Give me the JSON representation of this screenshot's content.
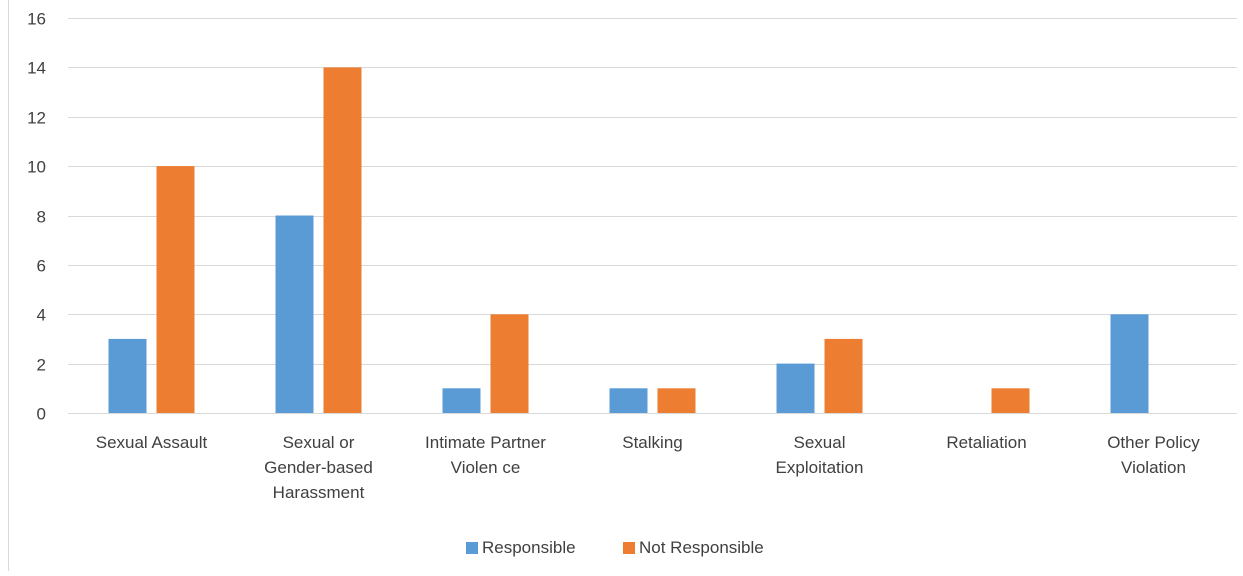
{
  "chart_data": {
    "type": "bar",
    "title": "",
    "xlabel": "",
    "ylabel": "",
    "ylim": [
      0,
      16
    ],
    "ytick_step": 2,
    "yticks": [
      "0",
      "2",
      "4",
      "6",
      "8",
      "10",
      "12",
      "14",
      "16"
    ],
    "grid": true,
    "legend_position": "bottom",
    "categories": [
      [
        "Sexual Assault"
      ],
      [
        "Sexual or",
        "Gender-based",
        "Harassment"
      ],
      [
        "Intimate Partner",
        "Violen ce"
      ],
      [
        "Stalking"
      ],
      [
        "Sexual",
        "Exploitation"
      ],
      [
        "Retaliation"
      ],
      [
        "Other Policy",
        "Violation"
      ]
    ],
    "series": [
      {
        "name": "Responsible",
        "color": "#5B9BD5",
        "values": [
          3,
          8,
          1,
          1,
          2,
          0,
          4
        ]
      },
      {
        "name": "Not Responsible",
        "color": "#ED7D31",
        "values": [
          10,
          14,
          4,
          1,
          3,
          1,
          0
        ]
      }
    ]
  }
}
